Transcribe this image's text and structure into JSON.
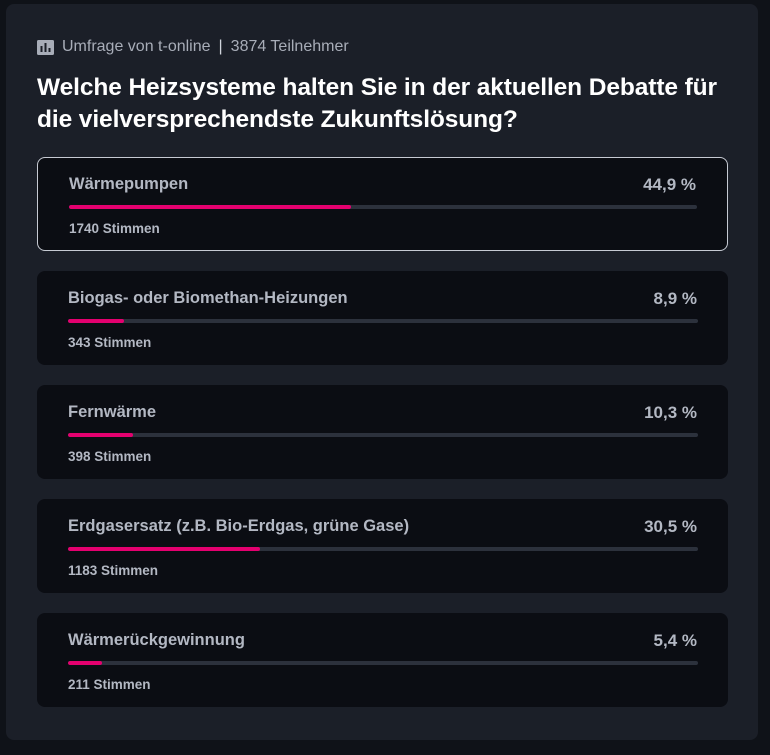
{
  "poll": {
    "source": "Umfrage von t-online",
    "separator": "|",
    "participants": "3874 Teilnehmer",
    "question": "Welche Heizsysteme halten Sie in der aktuellen Debatte für die vielversprechendste Zukunftslösung?",
    "accent_color": "#e4006f",
    "options": [
      {
        "label": "Wärmepumpen",
        "percent_text": "44,9 %",
        "percent": 44.9,
        "votes": "1740 Stimmen",
        "selected": true
      },
      {
        "label": "Biogas- oder Biomethan-Heizungen",
        "percent_text": "8,9 %",
        "percent": 8.9,
        "votes": "343 Stimmen",
        "selected": false
      },
      {
        "label": "Fernwärme",
        "percent_text": "10,3 %",
        "percent": 10.3,
        "votes": "398 Stimmen",
        "selected": false
      },
      {
        "label": "Erdgasersatz (z.B. Bio-Erdgas, grüne Gase)",
        "percent_text": "30,5 %",
        "percent": 30.5,
        "votes": "1183 Stimmen",
        "selected": false
      },
      {
        "label": "Wärmerückgewinnung",
        "percent_text": "5,4 %",
        "percent": 5.4,
        "votes": "211 Stimmen",
        "selected": false
      }
    ]
  }
}
